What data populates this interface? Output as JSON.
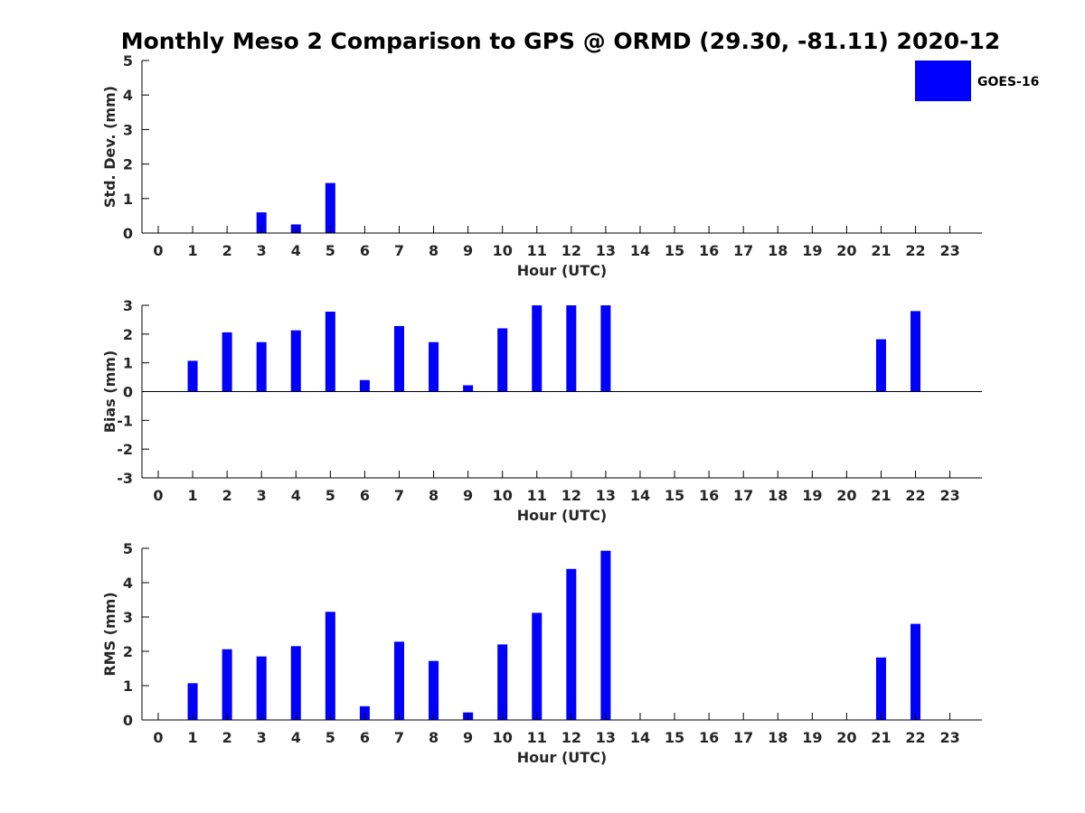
{
  "chart_data": {
    "type": "bar",
    "title": "Monthly Meso 2 Comparison to GPS @ ORMD (29.30, -81.11) 2020-12",
    "legend": {
      "label": "GOES-16",
      "placement": "top-right"
    },
    "bar_color": "#0000ff",
    "categories": [
      "0",
      "1",
      "2",
      "3",
      "4",
      "5",
      "6",
      "7",
      "8",
      "9",
      "10",
      "11",
      "12",
      "13",
      "14",
      "15",
      "16",
      "17",
      "18",
      "19",
      "20",
      "21",
      "22",
      "23"
    ],
    "panels": [
      {
        "ylabel": "Std. Dev. (mm)",
        "xlabel": "Hour (UTC)",
        "ylim": [
          0,
          5
        ],
        "yticks": [
          "0",
          "1",
          "2",
          "3",
          "4",
          "5"
        ],
        "zero_line": false,
        "values": [
          null,
          null,
          null,
          0.6,
          0.25,
          1.45,
          null,
          null,
          null,
          null,
          null,
          null,
          null,
          null,
          null,
          null,
          null,
          null,
          null,
          null,
          null,
          null,
          null,
          null
        ]
      },
      {
        "ylabel": "Bias (mm)",
        "xlabel": "Hour (UTC)",
        "ylim": [
          -3,
          3
        ],
        "yticks": [
          "-3",
          "-2",
          "-1",
          "0",
          "1",
          "2",
          "3"
        ],
        "zero_line": true,
        "values": [
          null,
          1.07,
          2.06,
          1.72,
          2.13,
          2.78,
          0.4,
          2.28,
          1.72,
          0.22,
          2.2,
          3.0,
          3.0,
          3.0,
          null,
          null,
          null,
          null,
          null,
          null,
          null,
          1.82,
          2.8,
          null
        ]
      },
      {
        "ylabel": "RMS (mm)",
        "xlabel": "Hour (UTC)",
        "ylim": [
          0,
          5
        ],
        "yticks": [
          "0",
          "1",
          "2",
          "3",
          "4",
          "5"
        ],
        "zero_line": false,
        "values": [
          null,
          1.07,
          2.06,
          1.85,
          2.15,
          3.15,
          0.4,
          2.28,
          1.72,
          0.22,
          2.2,
          3.12,
          4.4,
          4.93,
          null,
          null,
          null,
          null,
          null,
          null,
          null,
          1.82,
          2.8,
          null
        ]
      }
    ]
  }
}
